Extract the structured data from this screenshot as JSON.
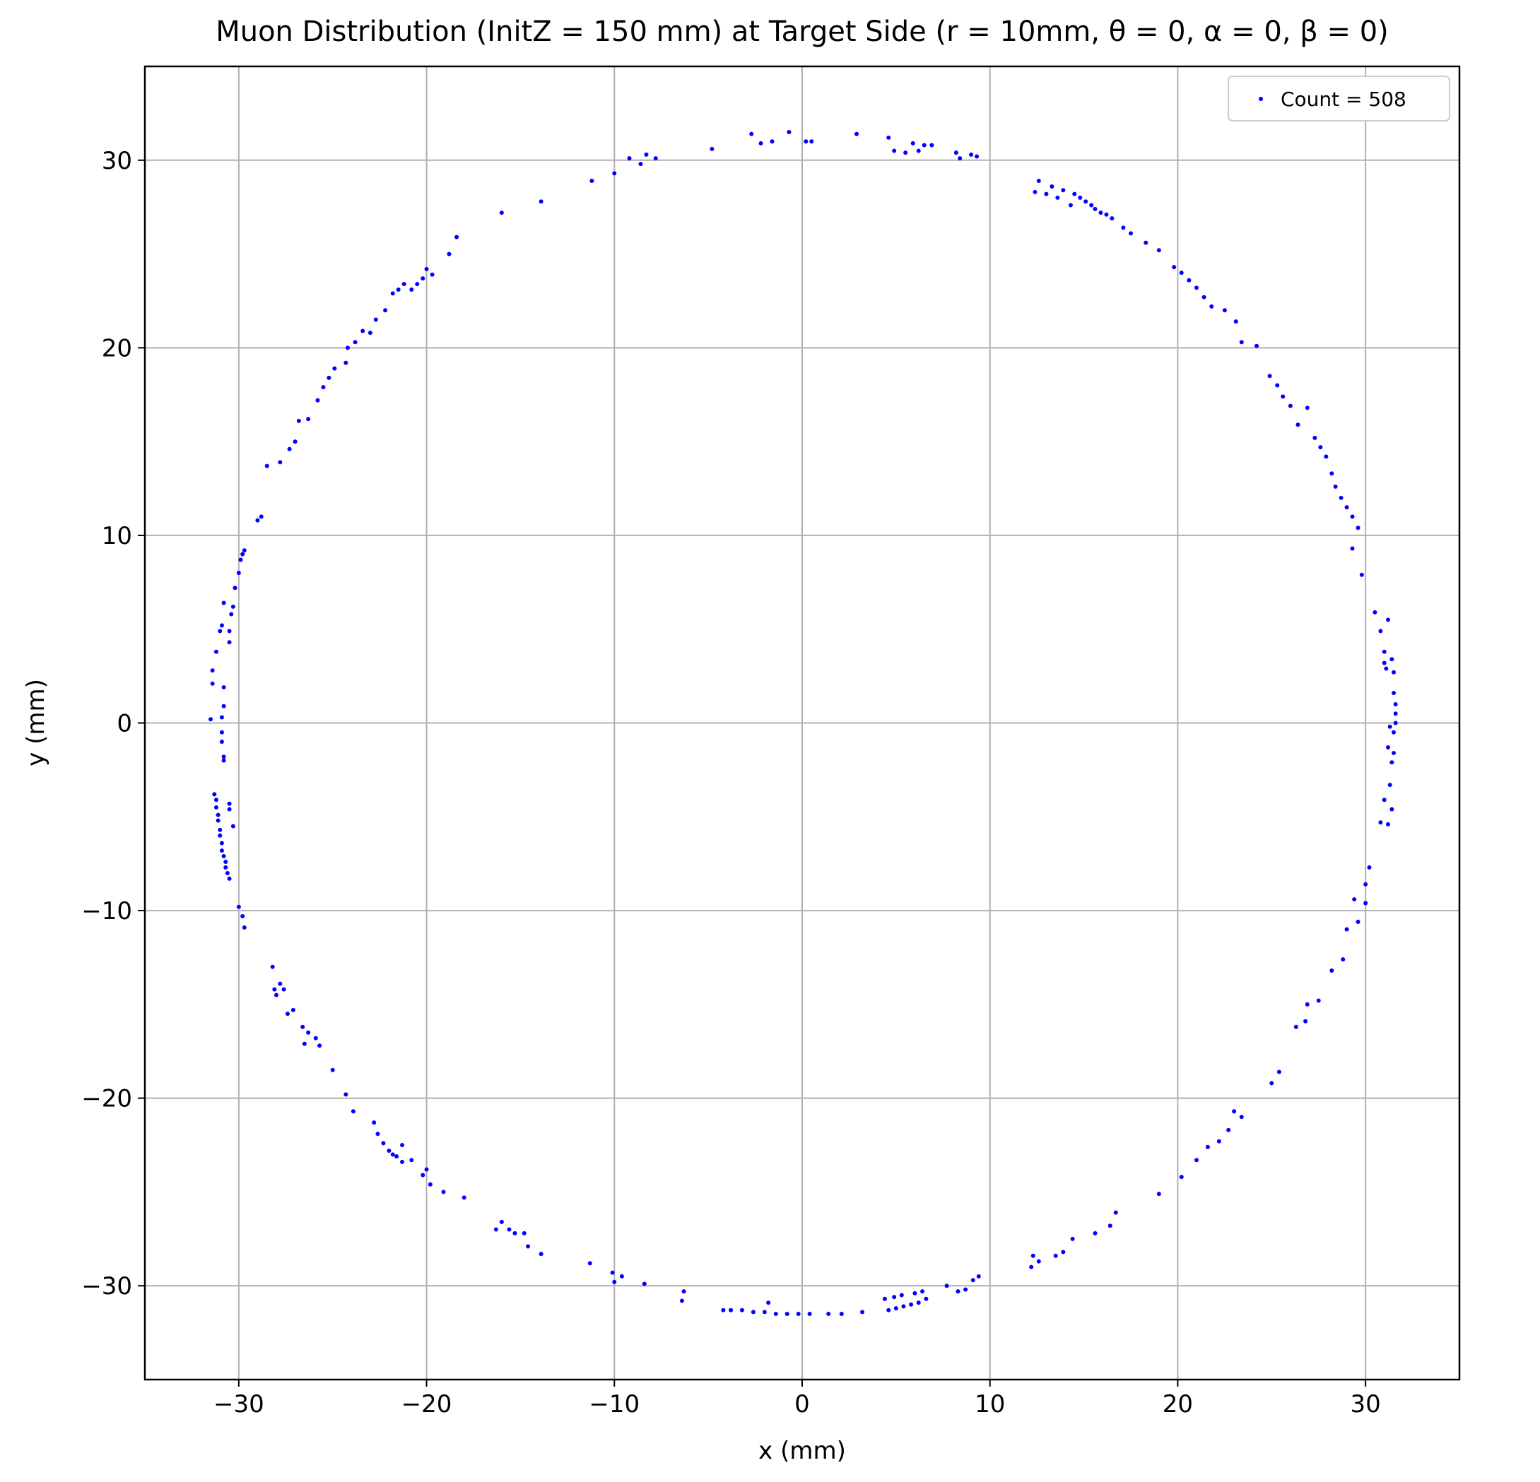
{
  "chart_data": {
    "type": "scatter",
    "title": "Muon Distribution (InitZ = 150 mm) at Target Side (r = 10mm, θ = 0, α = 0, β = 0)",
    "xlabel": "x (mm)",
    "ylabel": "y (mm)",
    "xlim": [
      -35,
      35
    ],
    "ylim": [
      -35,
      35
    ],
    "xticks": [
      -30,
      -20,
      -10,
      0,
      10,
      20,
      30
    ],
    "yticks": [
      -30,
      -20,
      -10,
      0,
      10,
      20,
      30
    ],
    "xtick_labels": [
      "−30",
      "−20",
      "−10",
      "0",
      "10",
      "20",
      "30"
    ],
    "ytick_labels": [
      "−30",
      "−20",
      "−10",
      "0",
      "10",
      "20",
      "30"
    ],
    "grid": true,
    "legend_position": "top-right",
    "series": [
      {
        "name": "Count = 508",
        "color": "#0000ff",
        "marker": "dot",
        "points": [
          [
            -31.5,
            0.2
          ],
          [
            -31.4,
            2.1
          ],
          [
            -31.4,
            2.8
          ],
          [
            -31.2,
            3.8
          ],
          [
            -31.0,
            4.9
          ],
          [
            -30.9,
            5.2
          ],
          [
            -30.8,
            6.4
          ],
          [
            -30.8,
            1.9
          ],
          [
            -30.8,
            0.9
          ],
          [
            -30.9,
            0.3
          ],
          [
            -30.9,
            -0.5
          ],
          [
            -30.9,
            -1.0
          ],
          [
            -30.8,
            -1.8
          ],
          [
            -30.8,
            -2.0
          ],
          [
            -30.5,
            4.3
          ],
          [
            -30.5,
            4.9
          ],
          [
            -30.4,
            5.8
          ],
          [
            -30.3,
            6.2
          ],
          [
            -30.2,
            7.2
          ],
          [
            -30.0,
            8.0
          ],
          [
            -29.9,
            8.7
          ],
          [
            -29.8,
            9.0
          ],
          [
            -29.7,
            9.2
          ],
          [
            -31.3,
            -3.8
          ],
          [
            -31.2,
            -4.1
          ],
          [
            -31.2,
            -4.5
          ],
          [
            -31.1,
            -4.9
          ],
          [
            -31.1,
            -5.2
          ],
          [
            -31.0,
            -5.7
          ],
          [
            -31.0,
            -6.0
          ],
          [
            -30.9,
            -6.4
          ],
          [
            -30.9,
            -6.8
          ],
          [
            -30.8,
            -7.1
          ],
          [
            -30.7,
            -7.4
          ],
          [
            -30.7,
            -7.7
          ],
          [
            -30.6,
            -8.0
          ],
          [
            -30.5,
            -8.3
          ],
          [
            -30.5,
            -4.3
          ],
          [
            -30.5,
            -4.6
          ],
          [
            -30.3,
            -5.5
          ],
          [
            -30.0,
            -9.8
          ],
          [
            -29.8,
            -10.3
          ],
          [
            -29.7,
            -10.9
          ],
          [
            -29.0,
            10.8
          ],
          [
            -28.8,
            11.0
          ],
          [
            -28.5,
            13.7
          ],
          [
            -27.8,
            13.9
          ],
          [
            -27.3,
            14.6
          ],
          [
            -27.0,
            15.0
          ],
          [
            -26.8,
            16.1
          ],
          [
            -26.3,
            16.2
          ],
          [
            -25.8,
            17.2
          ],
          [
            -25.5,
            17.9
          ],
          [
            -25.2,
            18.4
          ],
          [
            -24.9,
            18.9
          ],
          [
            -24.3,
            19.2
          ],
          [
            -24.2,
            20.0
          ],
          [
            -23.8,
            20.3
          ],
          [
            -23.4,
            20.9
          ],
          [
            -23.0,
            20.8
          ],
          [
            -22.7,
            21.5
          ],
          [
            -22.2,
            22.0
          ],
          [
            -21.8,
            22.9
          ],
          [
            -21.5,
            23.1
          ],
          [
            -21.2,
            23.4
          ],
          [
            -20.8,
            23.1
          ],
          [
            -20.5,
            23.4
          ],
          [
            -20.2,
            23.7
          ],
          [
            -20.0,
            24.2
          ],
          [
            -19.7,
            23.9
          ],
          [
            -18.8,
            25.0
          ],
          [
            -18.4,
            25.9
          ],
          [
            -16.0,
            27.2
          ],
          [
            -13.9,
            27.8
          ],
          [
            -11.2,
            28.9
          ],
          [
            -10.0,
            29.3
          ],
          [
            -9.2,
            30.1
          ],
          [
            -8.6,
            29.8
          ],
          [
            -8.3,
            30.3
          ],
          [
            -7.8,
            30.1
          ],
          [
            -4.8,
            30.6
          ],
          [
            -2.7,
            31.4
          ],
          [
            -2.2,
            30.9
          ],
          [
            -1.6,
            31.0
          ],
          [
            -0.7,
            31.5
          ],
          [
            0.2,
            31.0
          ],
          [
            0.5,
            31.0
          ],
          [
            2.9,
            31.4
          ],
          [
            4.6,
            31.2
          ],
          [
            4.9,
            30.5
          ],
          [
            5.5,
            30.4
          ],
          [
            5.9,
            30.9
          ],
          [
            6.2,
            30.5
          ],
          [
            6.5,
            30.8
          ],
          [
            6.9,
            30.8
          ],
          [
            8.2,
            30.4
          ],
          [
            8.4,
            30.1
          ],
          [
            9.0,
            30.3
          ],
          [
            9.3,
            30.2
          ],
          [
            12.4,
            28.3
          ],
          [
            12.6,
            28.9
          ],
          [
            13.0,
            28.2
          ],
          [
            13.3,
            28.6
          ],
          [
            13.6,
            28.0
          ],
          [
            13.9,
            28.4
          ],
          [
            14.3,
            27.6
          ],
          [
            14.5,
            28.2
          ],
          [
            14.8,
            28.0
          ],
          [
            15.1,
            27.8
          ],
          [
            15.4,
            27.6
          ],
          [
            15.6,
            27.4
          ],
          [
            15.9,
            27.2
          ],
          [
            16.2,
            27.1
          ],
          [
            16.5,
            26.9
          ],
          [
            17.1,
            26.4
          ],
          [
            17.5,
            26.1
          ],
          [
            18.3,
            25.6
          ],
          [
            19.0,
            25.2
          ],
          [
            19.8,
            24.3
          ],
          [
            20.2,
            24.0
          ],
          [
            20.6,
            23.6
          ],
          [
            21.0,
            23.2
          ],
          [
            21.4,
            22.7
          ],
          [
            21.8,
            22.2
          ],
          [
            22.5,
            22.0
          ],
          [
            23.1,
            21.4
          ],
          [
            23.4,
            20.3
          ],
          [
            24.2,
            20.1
          ],
          [
            24.9,
            18.5
          ],
          [
            25.3,
            18.0
          ],
          [
            25.6,
            17.4
          ],
          [
            26.0,
            16.9
          ],
          [
            26.4,
            15.9
          ],
          [
            26.9,
            16.8
          ],
          [
            27.3,
            15.2
          ],
          [
            27.6,
            14.7
          ],
          [
            27.9,
            14.2
          ],
          [
            28.2,
            13.3
          ],
          [
            28.4,
            12.6
          ],
          [
            28.7,
            12.0
          ],
          [
            29.0,
            11.5
          ],
          [
            29.3,
            11.0
          ],
          [
            29.6,
            10.4
          ],
          [
            29.3,
            9.3
          ],
          [
            29.8,
            7.9
          ],
          [
            30.5,
            5.9
          ],
          [
            30.8,
            4.9
          ],
          [
            31.0,
            3.8
          ],
          [
            31.0,
            3.2
          ],
          [
            31.1,
            2.9
          ],
          [
            31.2,
            5.5
          ],
          [
            31.4,
            3.4
          ],
          [
            31.5,
            2.7
          ],
          [
            31.5,
            1.6
          ],
          [
            31.6,
            1.0
          ],
          [
            31.6,
            0.5
          ],
          [
            31.6,
            0.0
          ],
          [
            31.5,
            -0.5
          ],
          [
            31.3,
            -0.2
          ],
          [
            31.2,
            -1.3
          ],
          [
            31.5,
            -1.6
          ],
          [
            31.4,
            -2.1
          ],
          [
            31.3,
            -3.3
          ],
          [
            31.0,
            -4.1
          ],
          [
            30.8,
            -5.3
          ],
          [
            31.4,
            -4.6
          ],
          [
            31.2,
            -5.4
          ],
          [
            30.2,
            -7.7
          ],
          [
            30.0,
            -8.6
          ],
          [
            29.4,
            -9.4
          ],
          [
            30.0,
            -9.6
          ],
          [
            29.6,
            -10.6
          ],
          [
            29.0,
            -11.0
          ],
          [
            28.8,
            -12.6
          ],
          [
            28.2,
            -13.2
          ],
          [
            27.5,
            -14.8
          ],
          [
            26.9,
            -15.0
          ],
          [
            26.8,
            -15.9
          ],
          [
            26.3,
            -16.2
          ],
          [
            25.4,
            -18.6
          ],
          [
            25.0,
            -19.2
          ],
          [
            23.4,
            -21.0
          ],
          [
            23.0,
            -20.7
          ],
          [
            22.7,
            -21.7
          ],
          [
            22.2,
            -22.3
          ],
          [
            21.6,
            -22.6
          ],
          [
            21.0,
            -23.3
          ],
          [
            20.2,
            -24.2
          ],
          [
            19.0,
            -25.1
          ],
          [
            16.7,
            -26.1
          ],
          [
            16.4,
            -26.8
          ],
          [
            15.6,
            -27.2
          ],
          [
            14.4,
            -27.5
          ],
          [
            13.9,
            -28.2
          ],
          [
            13.5,
            -28.4
          ],
          [
            12.6,
            -28.7
          ],
          [
            12.2,
            -29.0
          ],
          [
            12.3,
            -28.4
          ],
          [
            9.4,
            -29.5
          ],
          [
            9.1,
            -29.7
          ],
          [
            8.7,
            -30.2
          ],
          [
            8.3,
            -30.3
          ],
          [
            7.7,
            -30.0
          ],
          [
            6.6,
            -30.7
          ],
          [
            6.2,
            -30.9
          ],
          [
            5.8,
            -31.0
          ],
          [
            5.4,
            -31.1
          ],
          [
            5.0,
            -31.2
          ],
          [
            4.6,
            -31.3
          ],
          [
            4.4,
            -30.7
          ],
          [
            4.9,
            -30.6
          ],
          [
            5.3,
            -30.5
          ],
          [
            6.0,
            -30.4
          ],
          [
            6.4,
            -30.3
          ],
          [
            3.2,
            -31.4
          ],
          [
            2.1,
            -31.5
          ],
          [
            1.4,
            -31.5
          ],
          [
            0.4,
            -31.5
          ],
          [
            -0.2,
            -31.5
          ],
          [
            -0.8,
            -31.5
          ],
          [
            -1.4,
            -31.5
          ],
          [
            -2.0,
            -31.4
          ],
          [
            -2.6,
            -31.4
          ],
          [
            -3.2,
            -31.3
          ],
          [
            -3.8,
            -31.3
          ],
          [
            -4.2,
            -31.3
          ],
          [
            -1.8,
            -30.9
          ],
          [
            -6.4,
            -30.8
          ],
          [
            -6.3,
            -30.3
          ],
          [
            -8.4,
            -29.9
          ],
          [
            -9.6,
            -29.5
          ],
          [
            -10.0,
            -29.8
          ],
          [
            -10.1,
            -29.3
          ],
          [
            -11.3,
            -28.8
          ],
          [
            -13.9,
            -28.3
          ],
          [
            -14.6,
            -27.9
          ],
          [
            -14.8,
            -27.2
          ],
          [
            -15.3,
            -27.2
          ],
          [
            -15.6,
            -27.0
          ],
          [
            -16.0,
            -26.6
          ],
          [
            -16.3,
            -27.0
          ],
          [
            -18.0,
            -25.3
          ],
          [
            -19.1,
            -25.0
          ],
          [
            -19.8,
            -24.6
          ],
          [
            -20.2,
            -24.1
          ],
          [
            -20.0,
            -23.8
          ],
          [
            -20.8,
            -23.3
          ],
          [
            -21.3,
            -23.4
          ],
          [
            -21.6,
            -23.1
          ],
          [
            -21.8,
            -23.0
          ],
          [
            -22.0,
            -22.8
          ],
          [
            -22.3,
            -22.4
          ],
          [
            -21.3,
            -22.5
          ],
          [
            -22.6,
            -21.9
          ],
          [
            -22.8,
            -21.3
          ],
          [
            -23.9,
            -20.7
          ],
          [
            -24.3,
            -19.8
          ],
          [
            -25.0,
            -18.5
          ],
          [
            -25.7,
            -17.2
          ],
          [
            -25.9,
            -16.8
          ],
          [
            -26.3,
            -16.5
          ],
          [
            -26.5,
            -17.1
          ],
          [
            -26.6,
            -16.2
          ],
          [
            -27.1,
            -15.3
          ],
          [
            -27.4,
            -15.5
          ],
          [
            -27.6,
            -14.2
          ],
          [
            -27.8,
            -13.9
          ],
          [
            -28.0,
            -14.5
          ],
          [
            -28.2,
            -13.0
          ],
          [
            -28.1,
            -14.2
          ]
        ]
      }
    ]
  }
}
